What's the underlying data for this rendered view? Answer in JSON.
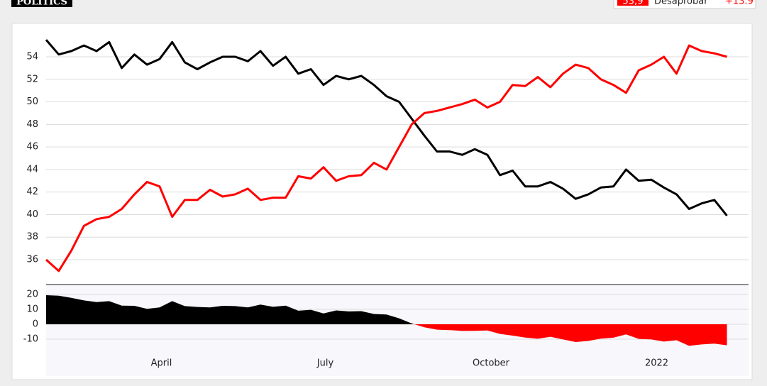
{
  "header": {
    "logo": "POLITICS",
    "value": "53,9",
    "label": "Desaprobar",
    "change": "+13.9"
  },
  "chart_data": [
    {
      "type": "line",
      "x": [
        0,
        7,
        14,
        21,
        28,
        35,
        42,
        49,
        56,
        63,
        70,
        77,
        84,
        91,
        98,
        105,
        112,
        119,
        126,
        133,
        140,
        147,
        154,
        161,
        168,
        175,
        182,
        189,
        196,
        203,
        210,
        217,
        224,
        231,
        238,
        245,
        252,
        259,
        266,
        273,
        280,
        287,
        294,
        301,
        308,
        315,
        322,
        329,
        336,
        343,
        350,
        357,
        364,
        371,
        378
      ],
      "xlim": [
        0,
        390
      ],
      "ylim": [
        34,
        56
      ],
      "yticks": [
        36,
        38,
        40,
        42,
        44,
        46,
        48,
        50,
        52,
        54
      ],
      "grid": true,
      "series": [
        {
          "color": "#000000",
          "values": [
            55.5,
            54.2,
            54.5,
            55,
            54.5,
            55.3,
            53,
            54.2,
            53.3,
            53.8,
            55.3,
            53.5,
            52.9,
            53.5,
            54,
            54,
            53.6,
            54.5,
            53.2,
            54,
            52.5,
            52.9,
            51.5,
            52.3,
            52,
            52.3,
            51.5,
            50.5,
            50,
            48.5,
            47,
            45.6,
            45.6,
            45.3,
            45.8,
            45.3,
            43.5,
            43.9,
            42.5,
            42.5,
            42.9,
            42.3,
            41.4,
            41.8,
            42.4,
            42.5,
            44,
            43,
            43.1,
            42.4,
            41.8,
            40.5,
            41,
            41.3,
            39.9
          ]
        },
        {
          "color": "#ff0000",
          "values": [
            36,
            35,
            36.8,
            39,
            39.6,
            39.8,
            40.5,
            41.8,
            42.9,
            42.5,
            39.8,
            41.3,
            41.3,
            42.2,
            41.6,
            41.8,
            42.3,
            41.3,
            41.5,
            41.5,
            43.4,
            43.2,
            44.2,
            43,
            43.4,
            43.5,
            44.6,
            44,
            46,
            48,
            49,
            49.2,
            49.5,
            49.8,
            50.2,
            49.5,
            50,
            51.5,
            51.4,
            52.2,
            51.3,
            52.5,
            53.3,
            53,
            52,
            51.5,
            50.8,
            52.8,
            53.3,
            54,
            52.5,
            55,
            54.5,
            54.3,
            54
          ]
        }
      ]
    },
    {
      "type": "area",
      "x": [
        0,
        7,
        14,
        21,
        28,
        35,
        42,
        49,
        56,
        63,
        70,
        77,
        84,
        91,
        98,
        105,
        112,
        119,
        126,
        133,
        140,
        147,
        154,
        161,
        168,
        175,
        182,
        189,
        196,
        203,
        210,
        217,
        224,
        231,
        238,
        245,
        252,
        259,
        266,
        273,
        280,
        287,
        294,
        301,
        308,
        315,
        322,
        329,
        336,
        343,
        350,
        357,
        364,
        371,
        378
      ],
      "xlim": [
        0,
        390
      ],
      "ylim": [
        -20,
        26
      ],
      "yticks": [
        -10,
        0,
        10,
        20
      ],
      "grid": true,
      "xticks": [
        {
          "value": 64,
          "label": "April"
        },
        {
          "value": 155,
          "label": "July"
        },
        {
          "value": 247,
          "label": "October"
        },
        {
          "value": 339,
          "label": "2022"
        }
      ],
      "color": "#000000",
      "negative_color": "#ff0000",
      "values": [
        19.5,
        19.2,
        17.7,
        16,
        14.9,
        15.5,
        12.5,
        12.4,
        10.4,
        11.3,
        15.5,
        12.2,
        11.6,
        11.3,
        12.4,
        12.2,
        11.3,
        13.2,
        11.7,
        12.5,
        9.1,
        9.7,
        7.3,
        9.3,
        8.6,
        8.8,
        6.9,
        6.5,
        4,
        0.5,
        -2,
        -3.6,
        -3.9,
        -4.5,
        -4.4,
        -4.2,
        -6.5,
        -7.6,
        -8.9,
        -9.7,
        -8.4,
        -10.2,
        -11.9,
        -11.2,
        -9.6,
        -9,
        -6.8,
        -9.8,
        -10.2,
        -11.6,
        -10.7,
        -14.5,
        -13.5,
        -13,
        -14.1
      ]
    }
  ]
}
